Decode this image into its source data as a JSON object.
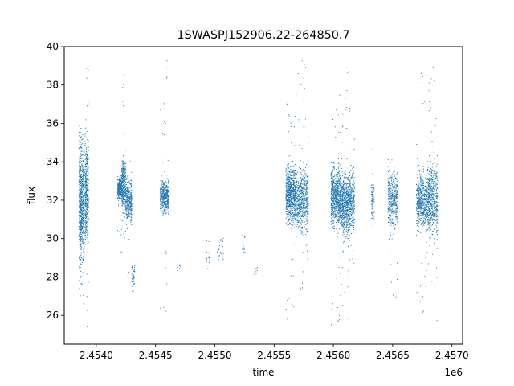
{
  "chart_data": {
    "type": "scatter",
    "title": "1SWASPJ152906.22-264850.7",
    "xlabel": "time",
    "ylabel": "flux",
    "x_offset_label": "1e6",
    "xlim": [
      2453730,
      2457090
    ],
    "ylim": [
      24.5,
      40
    ],
    "x_ticks": [
      2.454,
      2.4545,
      2.455,
      2.4555,
      2.456,
      2.4565,
      2.457
    ],
    "x_tick_labels": [
      "2.4540",
      "2.4545",
      "2.4550",
      "2.4555",
      "2.4560",
      "2.4565",
      "2.4570"
    ],
    "y_ticks": [
      26,
      28,
      30,
      32,
      34,
      36,
      38,
      40
    ],
    "y_tick_labels": [
      "26",
      "28",
      "30",
      "32",
      "34",
      "36",
      "38",
      "40"
    ],
    "grid": false,
    "point_color": "#1f77b4",
    "clusters": [
      {
        "t0": 2453855,
        "t1": 2453875,
        "center": 32.0,
        "spread": 2.8,
        "min": 26.8,
        "max": 36.5,
        "density": 420
      },
      {
        "t0": 2453875,
        "t1": 2453900,
        "center": 31.8,
        "spread": 2.6,
        "min": 26.0,
        "max": 36.5,
        "density": 350
      },
      {
        "t0": 2453905,
        "t1": 2453935,
        "center": 32.5,
        "spread": 2.3,
        "min": 25.2,
        "max": 39.3,
        "density": 420
      },
      {
        "t0": 2454180,
        "t1": 2454215,
        "center": 32.6,
        "spread": 0.5,
        "min": 29.2,
        "max": 33.5,
        "density": 260
      },
      {
        "t0": 2454215,
        "t1": 2454250,
        "center": 32.8,
        "spread": 1.2,
        "min": 28.5,
        "max": 38.6,
        "density": 340
      },
      {
        "t0": 2454250,
        "t1": 2454300,
        "center": 32.0,
        "spread": 1.0,
        "min": 27.5,
        "max": 34.5,
        "density": 320
      },
      {
        "t0": 2454300,
        "t1": 2454325,
        "center": 28.0,
        "spread": 0.5,
        "min": 26.8,
        "max": 28.8,
        "density": 45
      },
      {
        "t0": 2454540,
        "t1": 2454610,
        "center": 32.2,
        "spread": 0.7,
        "min": 26.0,
        "max": 39.3,
        "density": 420
      },
      {
        "t0": 2454680,
        "t1": 2454710,
        "center": 28.6,
        "spread": 0.2,
        "min": 28.2,
        "max": 29.0,
        "density": 8
      },
      {
        "t0": 2454930,
        "t1": 2454960,
        "center": 29.0,
        "spread": 0.6,
        "min": 28.2,
        "max": 30.2,
        "density": 20
      },
      {
        "t0": 2455020,
        "t1": 2455080,
        "center": 29.4,
        "spread": 0.5,
        "min": 28.8,
        "max": 30.2,
        "density": 30
      },
      {
        "t0": 2455230,
        "t1": 2455260,
        "center": 29.8,
        "spread": 0.6,
        "min": 29.0,
        "max": 31.2,
        "density": 15
      },
      {
        "t0": 2455330,
        "t1": 2455360,
        "center": 28.3,
        "spread": 0.3,
        "min": 27.6,
        "max": 28.8,
        "density": 8
      },
      {
        "t0": 2455600,
        "t1": 2455680,
        "center": 32.3,
        "spread": 1.3,
        "min": 25.2,
        "max": 37.2,
        "density": 700
      },
      {
        "t0": 2455680,
        "t1": 2455790,
        "center": 32.0,
        "spread": 1.3,
        "min": 27.0,
        "max": 39.4,
        "density": 650
      },
      {
        "t0": 2455980,
        "t1": 2456060,
        "center": 32.2,
        "spread": 1.4,
        "min": 25.5,
        "max": 37.5,
        "density": 700
      },
      {
        "t0": 2456060,
        "t1": 2456140,
        "center": 31.8,
        "spread": 1.5,
        "min": 25.5,
        "max": 39.2,
        "density": 700
      },
      {
        "t0": 2456140,
        "t1": 2456180,
        "center": 32.0,
        "spread": 1.3,
        "min": 25.8,
        "max": 35.2,
        "density": 250
      },
      {
        "t0": 2456320,
        "t1": 2456345,
        "center": 32.0,
        "spread": 1.0,
        "min": 30.2,
        "max": 34.8,
        "density": 80
      },
      {
        "t0": 2456460,
        "t1": 2456540,
        "center": 32.0,
        "spread": 1.2,
        "min": 26.6,
        "max": 35.0,
        "density": 420
      },
      {
        "t0": 2456700,
        "t1": 2456790,
        "center": 32.0,
        "spread": 1.3,
        "min": 26.0,
        "max": 39.0,
        "density": 520
      },
      {
        "t0": 2456790,
        "t1": 2456880,
        "center": 32.0,
        "spread": 1.6,
        "min": 25.4,
        "max": 39.1,
        "density": 600
      }
    ]
  }
}
